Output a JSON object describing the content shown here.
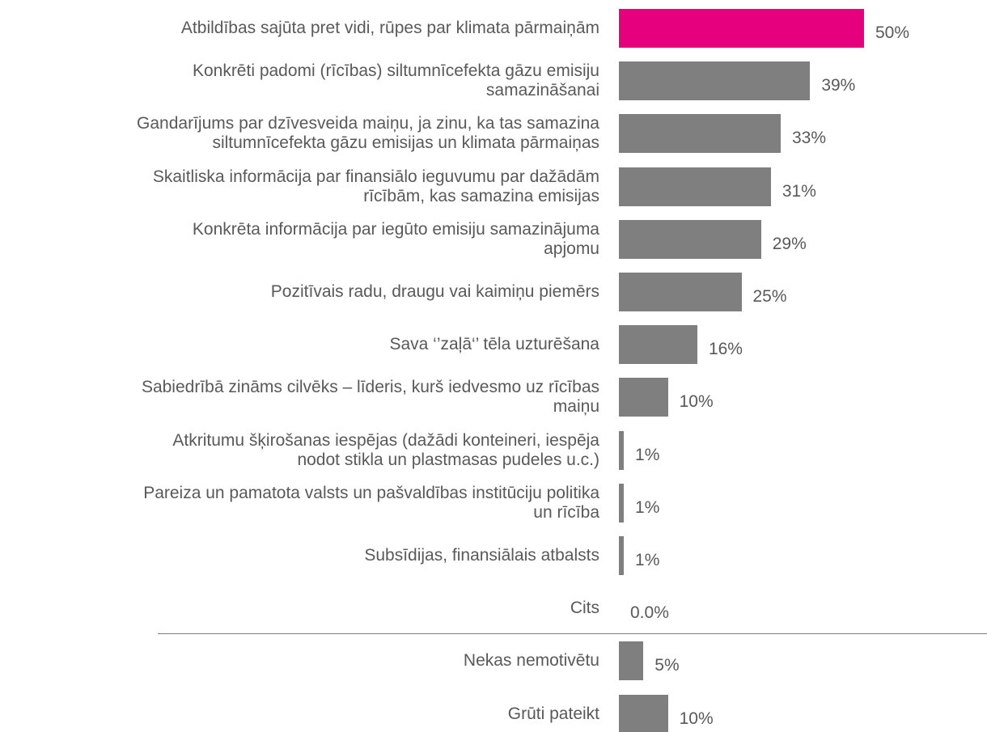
{
  "chart_data": {
    "type": "bar",
    "orientation": "horizontal",
    "categories": [
      "Atbildības sajūta pret vidi, rūpes par klimata pārmaiņām",
      "Konkrēti padomi (rīcības) siltumnīcefekta gāzu emisiju\nsamazināšanai",
      "Gandarījums par dzīvesveida maiņu, ja zinu, ka tas samazina\nsiltumnīcefekta gāzu emisijas un klimata pārmaiņas",
      "Skaitliska informācija par finansiālo ieguvumu par dažādām\nrīcībām, kas samazina emisijas",
      "Konkrēta informācija par iegūto emisiju samazinājuma\napjomu",
      "Pozitīvais radu, draugu vai kaimiņu piemērs",
      "Sava ‘’zaļā‘’ tēla uzturēšana",
      "Sabiedrībā zināms cilvēks – līderis, kurš iedvesmo uz rīcības\nmaiņu",
      "Atkritumu šķirošanas iespējas (dažādi konteineri, iespēja\nnodot stikla un plastmasas pudeles u.c.)",
      "Pareiza un pamatota valsts un pašvaldības institūciju politika\nun rīcība",
      "Subsīdijas, finansiālais atbalsts",
      "Cits",
      "Nekas nemotivētu",
      "Grūti pateikt"
    ],
    "values": [
      50,
      39,
      33,
      31,
      29,
      25,
      16,
      10,
      1,
      1,
      1,
      0,
      5,
      10
    ],
    "value_labels": [
      "50%",
      "39%",
      "33%",
      "31%",
      "29%",
      "25%",
      "16%",
      "10%",
      "1%",
      "1%",
      "1%",
      "0.0%",
      "5%",
      "10%"
    ],
    "colors": [
      "#e6007e",
      "#7f7f7f",
      "#7f7f7f",
      "#7f7f7f",
      "#7f7f7f",
      "#7f7f7f",
      "#7f7f7f",
      "#7f7f7f",
      "#7f7f7f",
      "#7f7f7f",
      "#7f7f7f",
      "#7f7f7f",
      "#7f7f7f",
      "#7f7f7f"
    ]
  }
}
